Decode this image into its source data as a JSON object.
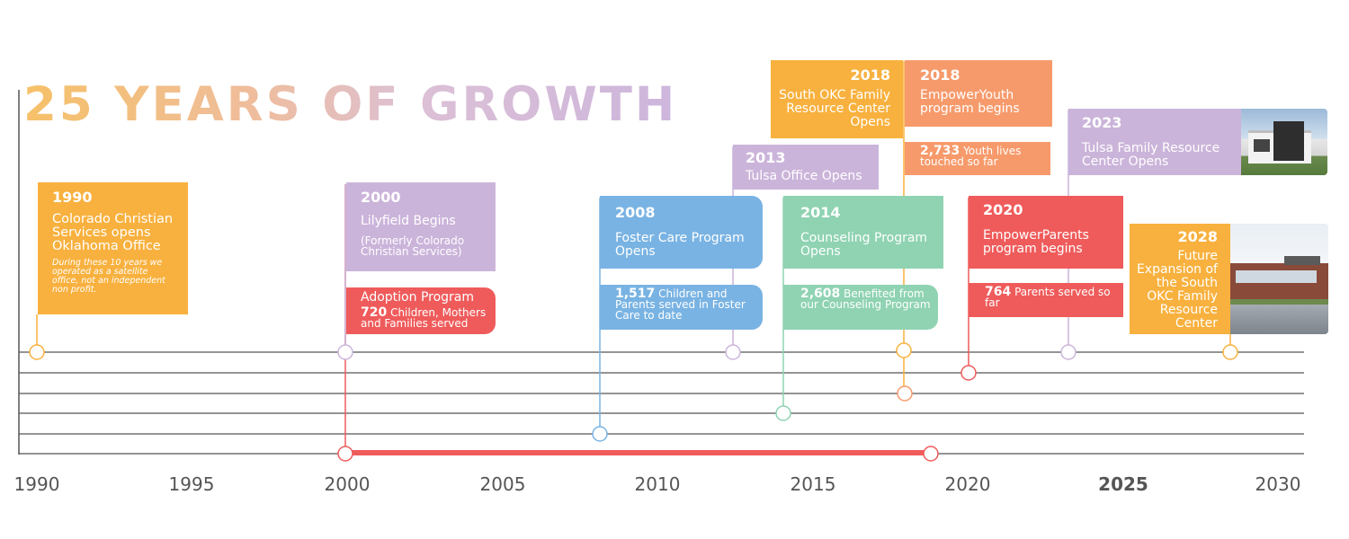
{
  "title": "25 YEARS OF GROWTH",
  "colors": {
    "orange": "#f8b13e",
    "lavender": "#cbb4da",
    "red": "#ef5b5b",
    "blue": "#79b3e3",
    "green": "#8fd3b2",
    "salmon": "#f79a6b",
    "axis": "#555555"
  },
  "axis": {
    "ticks": [
      "1990",
      "1995",
      "2000",
      "2005",
      "2010",
      "2015",
      "2020",
      "2025",
      "2030"
    ],
    "highlight": "2025"
  },
  "events": [
    {
      "year": "1990",
      "title": "Colorado Christian Services opens Oklahoma Office",
      "note": "During these 10 years we operated as a satellite office, not an independent non profit."
    },
    {
      "year": "2000",
      "title": "Lilyfield Begins",
      "subtitle": "(Formerly Colorado Christian Services)"
    },
    {
      "title": "Adoption Program",
      "stat": "720",
      "stat_text": "Children, Mothers and Families served"
    },
    {
      "year": "2008",
      "title": "Foster Care Program Opens",
      "stat": "1,517",
      "stat_text": "Children and Parents served in Foster Care to date"
    },
    {
      "year": "2013",
      "title": "Tulsa Office Opens"
    },
    {
      "year": "2014",
      "title": "Counseling Program Opens",
      "stat": "2,608",
      "stat_text": "Benefited from our Counseling Program"
    },
    {
      "year": "2018",
      "title": "South OKC Family Resource Center Opens"
    },
    {
      "year": "2018",
      "title": "EmpowerYouth program begins",
      "stat": "2,733",
      "stat_text": "Youth lives touched so far"
    },
    {
      "year": "2020",
      "title": "EmpowerParents program begins",
      "stat": "764",
      "stat_text": "Parents served so far"
    },
    {
      "year": "2023",
      "title": "Tulsa Family Resource Center Opens"
    },
    {
      "year": "2028",
      "title": "Future Expansion of the South OKC Family Resource Center"
    }
  ],
  "program_bars": [
    {
      "name": "EmpowerParents",
      "start": 2020,
      "end": 2030,
      "color": "#ef5b5b"
    },
    {
      "name": "EmpowerYouth",
      "start": 2018,
      "end": 2030,
      "color": "#f79a6b"
    },
    {
      "name": "Counseling",
      "start": 2014,
      "end": 2030,
      "color": "#8fd3b2"
    },
    {
      "name": "Foster Care",
      "start": 2008,
      "end": 2030,
      "color": "#79b3e3"
    },
    {
      "name": "Adoption",
      "start": 2000,
      "end": 2019,
      "color": "#ef5b5b"
    }
  ],
  "milestones": [
    1990,
    2000,
    2012.5,
    2018,
    2023,
    2028.5
  ]
}
